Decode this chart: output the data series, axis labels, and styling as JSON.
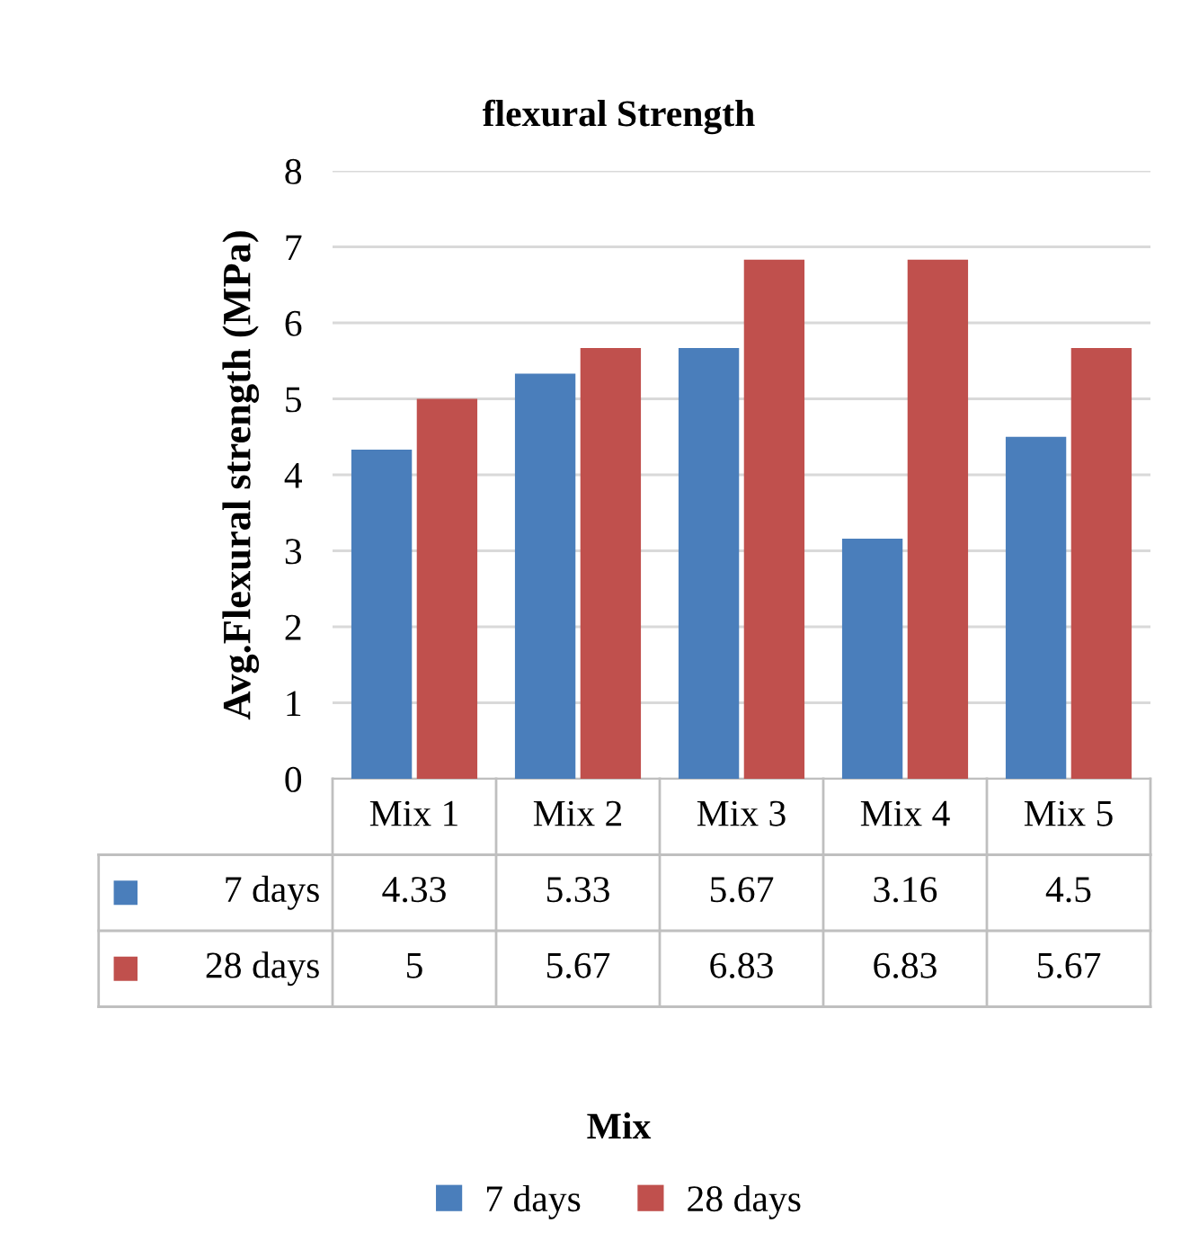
{
  "chart_data": {
    "type": "bar",
    "title": "flexural Strength",
    "annotations": [
      "Mix"
    ],
    "ylabel": "Avg.Flexural strength (MPa)",
    "categories": [
      "Mix 1",
      "Mix 2",
      "Mix 3",
      "Mix 4",
      "Mix 5"
    ],
    "series": [
      {
        "name": "7 days",
        "color": "#4a7ebb",
        "values": [
          4.33,
          5.33,
          5.67,
          3.16,
          4.5
        ]
      },
      {
        "name": "28 days",
        "color": "#c0504d",
        "values": [
          5,
          5.67,
          6.83,
          6.83,
          5.67
        ]
      }
    ],
    "ylim": [
      0,
      8
    ],
    "yticks": [
      0,
      1,
      2,
      3,
      4,
      5,
      6,
      7,
      8
    ],
    "grid": "y",
    "legend": "bottom",
    "data_labels": true
  }
}
